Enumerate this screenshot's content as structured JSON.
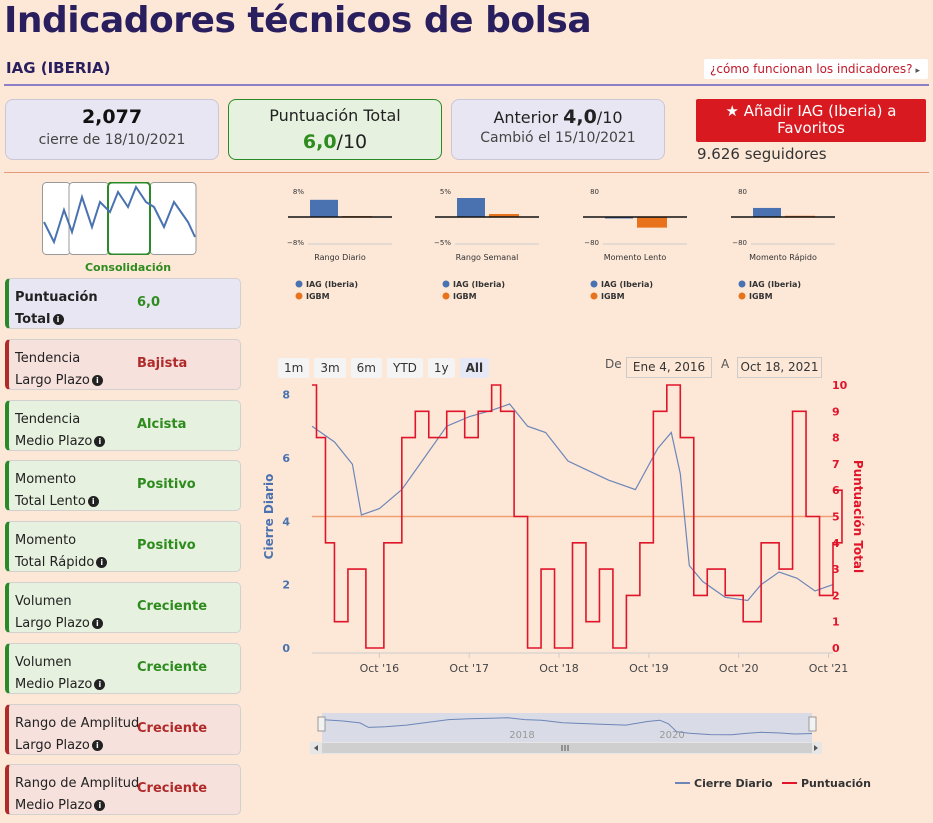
{
  "page": {
    "title": "Indicadores técnicos de bolsa",
    "ticker": "IAG (IBERIA)",
    "how_link": "¿cómo funcionan los indicadores?",
    "caret": "▸"
  },
  "cards": {
    "close": {
      "value": "2,077",
      "sub": "cierre de 18/10/2021"
    },
    "total": {
      "label": "Puntuación Total",
      "score": "6,0",
      "of": "/10"
    },
    "prev": {
      "label": "Anterior",
      "score": "4,0",
      "of": "/10",
      "sub": "Cambió el 15/10/2021"
    }
  },
  "favorite": {
    "star": "★",
    "label": "Añadir IAG (Iberia) a Favoritos",
    "followers": "9.626 seguidores"
  },
  "thumbnail": {
    "label": "Consolidación"
  },
  "indicators": [
    {
      "line1": "Puntuación",
      "line2": "Total",
      "value": "6,0",
      "state": "gray"
    },
    {
      "line1": "Tendencia",
      "line2": "Largo Plazo",
      "value": "Bajista",
      "state": "red"
    },
    {
      "line1": "Tendencia",
      "line2": "Medio Plazo",
      "value": "Alcista",
      "state": "green"
    },
    {
      "line1": "Momento",
      "line2": "Total Lento",
      "value": "Positivo",
      "state": "green"
    },
    {
      "line1": "Momento",
      "line2": "Total Rápido",
      "value": "Positivo",
      "state": "green"
    },
    {
      "line1": "Volumen",
      "line2": "Largo Plazo",
      "value": "Creciente",
      "state": "green"
    },
    {
      "line1": "Volumen",
      "line2": "Medio Plazo",
      "value": "Creciente",
      "state": "green"
    },
    {
      "line1": "Rango de Amplitud",
      "line2": "Largo Plazo",
      "value": "Creciente",
      "state": "red"
    },
    {
      "line1": "Rango de Amplitud",
      "line2": "Medio Plazo",
      "value": "Creciente",
      "state": "red"
    }
  ],
  "info_icon": "i",
  "range_selector": {
    "buttons": [
      "1m",
      "3m",
      "6m",
      "YTD",
      "1y",
      "All"
    ],
    "active": "All",
    "from_label": "De",
    "from": "Ene 4, 2016",
    "to_label": "A",
    "to": "Oct 18, 2021"
  },
  "colors": {
    "iag": "#4a72b0",
    "igbm": "#e8731c",
    "close_line": "#6d86b8",
    "score_line": "#e0152a",
    "green": "#2e8b1e",
    "red": "#b02a2a",
    "title": "#2a1f5e"
  },
  "chart_data": [
    {
      "type": "bar",
      "title": "Rango Diario",
      "categories": [
        "IAG (Iberia)",
        "IGBM"
      ],
      "values": [
        5.5,
        0.3
      ],
      "ylim": [
        -8,
        8
      ],
      "ytick_labels": [
        "8%",
        "−8%"
      ]
    },
    {
      "type": "bar",
      "title": "Rango Semanal",
      "categories": [
        "IAG (Iberia)",
        "IGBM"
      ],
      "values": [
        3.8,
        0.6
      ],
      "ylim": [
        -5,
        5
      ],
      "ytick_labels": [
        "5%",
        "−5%"
      ]
    },
    {
      "type": "bar",
      "title": "Momento Lento",
      "categories": [
        "IAG (Iberia)",
        "IGBM"
      ],
      "values": [
        -2,
        -34
      ],
      "ylim": [
        -80,
        80
      ],
      "ytick_labels": [
        "80",
        "−80"
      ]
    },
    {
      "type": "bar",
      "title": "Momento Rápido",
      "categories": [
        "IAG (Iberia)",
        "IGBM"
      ],
      "values": [
        29,
        4
      ],
      "ylim": [
        -80,
        80
      ],
      "ytick_labels": [
        "80",
        "−80"
      ]
    },
    {
      "type": "line",
      "x_ticks": [
        "Oct '16",
        "Oct '17",
        "Oct '18",
        "Oct '19",
        "Oct '20",
        "Oct '21"
      ],
      "y_left": {
        "label": "Cierre Diario",
        "ticks": [
          0,
          2,
          4,
          6,
          8
        ],
        "ylim": [
          0,
          8.3
        ]
      },
      "y_right": {
        "label": "Puntuación Total",
        "ticks": [
          0,
          1,
          2,
          3,
          4,
          5,
          6,
          7,
          8,
          9,
          10
        ],
        "ylim": [
          0,
          10
        ]
      },
      "navigator_labels": [
        "2018",
        "2020"
      ],
      "series": [
        {
          "name": "Cierre Diario",
          "axis": "left",
          "x": [
            2016.0,
            2016.25,
            2016.45,
            2016.55,
            2016.75,
            2017.0,
            2017.25,
            2017.5,
            2017.75,
            2018.0,
            2018.2,
            2018.4,
            2018.6,
            2018.85,
            2019.0,
            2019.3,
            2019.6,
            2019.85,
            2020.0,
            2020.1,
            2020.2,
            2020.35,
            2020.6,
            2020.85,
            2021.0,
            2021.2,
            2021.4,
            2021.6,
            2021.8
          ],
          "values": [
            7.0,
            6.5,
            5.8,
            4.2,
            4.4,
            5.0,
            6.0,
            7.0,
            7.3,
            7.5,
            7.7,
            7.0,
            6.8,
            5.9,
            5.7,
            5.3,
            5.0,
            6.3,
            6.8,
            5.5,
            2.6,
            2.1,
            1.6,
            1.5,
            2.0,
            2.4,
            2.2,
            1.8,
            2.0
          ]
        },
        {
          "name": "Puntuación",
          "axis": "right",
          "x": [
            2016.0,
            2016.05,
            2016.15,
            2016.25,
            2016.4,
            2016.6,
            2016.8,
            2017.0,
            2017.15,
            2017.3,
            2017.5,
            2017.7,
            2017.85,
            2018.0,
            2018.1,
            2018.25,
            2018.4,
            2018.55,
            2018.7,
            2018.9,
            2019.05,
            2019.2,
            2019.35,
            2019.5,
            2019.65,
            2019.8,
            2019.95,
            2020.1,
            2020.25,
            2020.4,
            2020.6,
            2020.8,
            2021.0,
            2021.2,
            2021.35,
            2021.5,
            2021.65,
            2021.8,
            2021.9
          ],
          "values": [
            10,
            8,
            4,
            1,
            3,
            0,
            4,
            8,
            9,
            8,
            9,
            8,
            9,
            10,
            9,
            5,
            0,
            3,
            0,
            4,
            1,
            3,
            0,
            2,
            4,
            9,
            10,
            8,
            2,
            3,
            2,
            1,
            4,
            3,
            9,
            5,
            2,
            4,
            6
          ]
        }
      ]
    }
  ]
}
